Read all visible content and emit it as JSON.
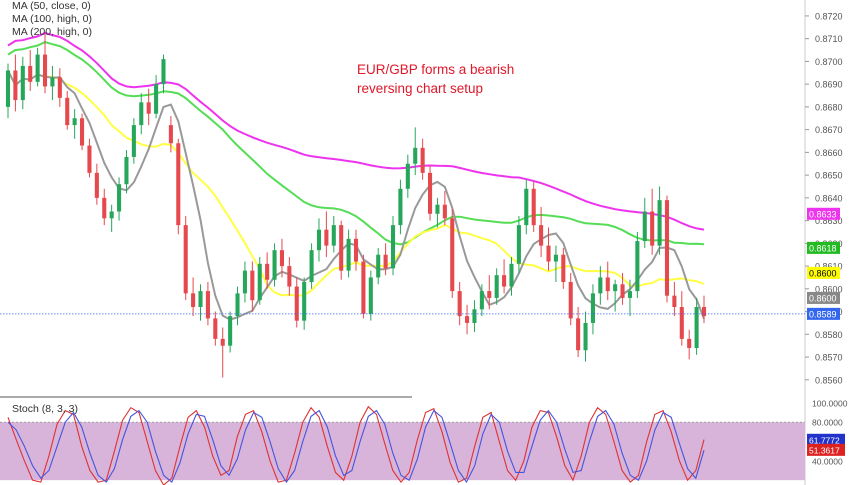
{
  "chart_data": [
    {
      "type": "candlestick",
      "indicators": [
        {
          "name": "MA (50, close, 0)",
          "color": "#ffff44"
        },
        {
          "name": "MA (100, high, 0)",
          "color": "#55dd55"
        },
        {
          "name": "MA (200, high, 0)",
          "color": "#ee33ee"
        }
      ],
      "annotation_lines": [
        "EUR/GBP forms a bearish",
        "reversing chart setup"
      ],
      "y_ticks": [
        "0.8720",
        "0.8710",
        "0.8700",
        "0.8690",
        "0.8680",
        "0.8670",
        "0.8660",
        "0.8650",
        "0.8640",
        "0.8630",
        "0.8620",
        "0.8610",
        "0.8600",
        "0.8590",
        "0.8580",
        "0.8570",
        "0.8560"
      ],
      "ylim": [
        0.8552,
        0.8727
      ],
      "grid": false,
      "price_line": 0.8589,
      "colors": {
        "up": "#26a65b",
        "down": "#e5484d",
        "ma20": "#999999"
      },
      "markers": [
        {
          "label": "0.8633",
          "value": 0.8633,
          "color": "#ee33ee"
        },
        {
          "label": "0.8618",
          "value": 0.8618,
          "color": "#22bb22"
        },
        {
          "label": "0.8600",
          "value": 0.8607,
          "color": "#ffff00",
          "text_color": "#000000"
        },
        {
          "label": "0.8600",
          "value": 0.8596,
          "color": "#888888"
        },
        {
          "label": "0.8589",
          "value": 0.8589,
          "color": "#3366ee"
        }
      ],
      "candles": [
        [
          0.868,
          0.8699,
          0.8675,
          0.8696
        ],
        [
          0.8696,
          0.8703,
          0.8678,
          0.8683
        ],
        [
          0.8683,
          0.8702,
          0.8679,
          0.8698
        ],
        [
          0.8698,
          0.8705,
          0.8687,
          0.8691
        ],
        [
          0.8691,
          0.8706,
          0.8689,
          0.8703
        ],
        [
          0.8703,
          0.8712,
          0.8686,
          0.8689
        ],
        [
          0.8689,
          0.8698,
          0.8683,
          0.8693
        ],
        [
          0.8693,
          0.8697,
          0.868,
          0.8684
        ],
        [
          0.8684,
          0.8687,
          0.867,
          0.8672
        ],
        [
          0.8672,
          0.8679,
          0.8666,
          0.8675
        ],
        [
          0.8675,
          0.8677,
          0.8661,
          0.8663
        ],
        [
          0.8663,
          0.8666,
          0.8649,
          0.8651
        ],
        [
          0.8651,
          0.8655,
          0.8637,
          0.864
        ],
        [
          0.864,
          0.8644,
          0.8628,
          0.8631
        ],
        [
          0.8631,
          0.8637,
          0.8625,
          0.8634
        ],
        [
          0.8634,
          0.8649,
          0.863,
          0.8646
        ],
        [
          0.8646,
          0.8661,
          0.8642,
          0.8658
        ],
        [
          0.8658,
          0.8675,
          0.8655,
          0.8672
        ],
        [
          0.8672,
          0.8686,
          0.8668,
          0.8682
        ],
        [
          0.8682,
          0.8688,
          0.8672,
          0.8677
        ],
        [
          0.8677,
          0.8694,
          0.8675,
          0.869
        ],
        [
          0.869,
          0.8703,
          0.8686,
          0.8701
        ],
        [
          0.8672,
          0.8676,
          0.866,
          0.8664
        ],
        [
          0.8664,
          0.8666,
          0.8624,
          0.8628
        ],
        [
          0.8628,
          0.8632,
          0.8595,
          0.8598
        ],
        [
          0.8598,
          0.8605,
          0.8588,
          0.8592
        ],
        [
          0.8592,
          0.8602,
          0.8586,
          0.8599
        ],
        [
          0.8599,
          0.8603,
          0.8584,
          0.8587
        ],
        [
          0.8587,
          0.859,
          0.8575,
          0.8578
        ],
        [
          0.8578,
          0.8583,
          0.8561,
          0.8575
        ],
        [
          0.8575,
          0.859,
          0.8572,
          0.8588
        ],
        [
          0.8588,
          0.8601,
          0.8584,
          0.8598
        ],
        [
          0.8598,
          0.8612,
          0.8594,
          0.8608
        ],
        [
          0.8608,
          0.8612,
          0.859,
          0.8595
        ],
        [
          0.8595,
          0.8614,
          0.8593,
          0.8611
        ],
        [
          0.8611,
          0.8616,
          0.86,
          0.8604
        ],
        [
          0.8604,
          0.862,
          0.8601,
          0.8617
        ],
        [
          0.8617,
          0.8622,
          0.8605,
          0.861
        ],
        [
          0.861,
          0.8614,
          0.8597,
          0.8601
        ],
        [
          0.8601,
          0.8605,
          0.8583,
          0.8586
        ],
        [
          0.8586,
          0.8605,
          0.8582,
          0.8603
        ],
        [
          0.8603,
          0.862,
          0.86,
          0.8617
        ],
        [
          0.8617,
          0.8631,
          0.8612,
          0.8626
        ],
        [
          0.8626,
          0.8634,
          0.8614,
          0.8619
        ],
        [
          0.8619,
          0.8632,
          0.8616,
          0.8628
        ],
        [
          0.8628,
          0.863,
          0.8604,
          0.8608
        ],
        [
          0.8608,
          0.8626,
          0.8605,
          0.8622
        ],
        [
          0.8622,
          0.8626,
          0.8608,
          0.8612
        ],
        [
          0.8612,
          0.8615,
          0.8587,
          0.8589
        ],
        [
          0.8589,
          0.8608,
          0.8586,
          0.8605
        ],
        [
          0.8605,
          0.8618,
          0.8602,
          0.8615
        ],
        [
          0.8615,
          0.862,
          0.8606,
          0.8609
        ],
        [
          0.8609,
          0.8632,
          0.8606,
          0.8628
        ],
        [
          0.8628,
          0.8648,
          0.8624,
          0.8644
        ],
        [
          0.8644,
          0.8659,
          0.864,
          0.8655
        ],
        [
          0.8655,
          0.8671,
          0.865,
          0.8662
        ],
        [
          0.8662,
          0.8666,
          0.8648,
          0.8651
        ],
        [
          0.8651,
          0.8654,
          0.863,
          0.8633
        ],
        [
          0.8633,
          0.864,
          0.8627,
          0.8637
        ],
        [
          0.8637,
          0.8643,
          0.8628,
          0.8631
        ],
        [
          0.8631,
          0.8635,
          0.8596,
          0.8599
        ],
        [
          0.8599,
          0.8603,
          0.8584,
          0.8588
        ],
        [
          0.8588,
          0.8593,
          0.858,
          0.8585
        ],
        [
          0.8585,
          0.8595,
          0.8581,
          0.8591
        ],
        [
          0.8591,
          0.8602,
          0.8588,
          0.8599
        ],
        [
          0.8599,
          0.8606,
          0.8591,
          0.8596
        ],
        [
          0.8596,
          0.8609,
          0.8593,
          0.8606
        ],
        [
          0.8606,
          0.8613,
          0.8598,
          0.8601
        ],
        [
          0.8601,
          0.8614,
          0.8597,
          0.8611
        ],
        [
          0.8611,
          0.8632,
          0.8607,
          0.8628
        ],
        [
          0.8628,
          0.8648,
          0.8624,
          0.8644
        ],
        [
          0.8644,
          0.8647,
          0.8625,
          0.8628
        ],
        [
          0.8628,
          0.8636,
          0.8614,
          0.8619
        ],
        [
          0.8619,
          0.8627,
          0.8608,
          0.8612
        ],
        [
          0.8612,
          0.8619,
          0.8603,
          0.8615
        ],
        [
          0.8615,
          0.8618,
          0.86,
          0.8603
        ],
        [
          0.8603,
          0.8607,
          0.8584,
          0.8587
        ],
        [
          0.8587,
          0.8592,
          0.857,
          0.8573
        ],
        [
          0.8573,
          0.859,
          0.8568,
          0.8585
        ],
        [
          0.8585,
          0.8602,
          0.858,
          0.8598
        ],
        [
          0.8598,
          0.861,
          0.8593,
          0.8605
        ],
        [
          0.8605,
          0.8612,
          0.8595,
          0.8599
        ],
        [
          0.8599,
          0.8604,
          0.859,
          0.8602
        ],
        [
          0.8602,
          0.8607,
          0.8593,
          0.8596
        ],
        [
          0.8596,
          0.8604,
          0.8588,
          0.8599
        ],
        [
          0.8599,
          0.8625,
          0.8596,
          0.8621
        ],
        [
          0.8621,
          0.864,
          0.8618,
          0.8634
        ],
        [
          0.8634,
          0.8644,
          0.8615,
          0.8619
        ],
        [
          0.8619,
          0.8645,
          0.8615,
          0.8639
        ],
        [
          0.8639,
          0.8641,
          0.8594,
          0.8597
        ],
        [
          0.8597,
          0.8603,
          0.8588,
          0.8592
        ],
        [
          0.8592,
          0.8599,
          0.8575,
          0.8578
        ],
        [
          0.8578,
          0.8582,
          0.8569,
          0.8574
        ],
        [
          0.8574,
          0.8596,
          0.8571,
          0.8592
        ],
        [
          0.8592,
          0.8597,
          0.8585,
          0.8588
        ]
      ]
    },
    {
      "type": "line",
      "title": "Stoch (8, 3, 3)",
      "y_ticks": [
        "100.0000",
        "80.0000",
        "40.0000"
      ],
      "ylim": [
        15,
        105
      ],
      "levels": [
        80,
        20
      ],
      "colors": {
        "k": "#4455dd",
        "d": "#dd3333",
        "band": "#d8b3da"
      },
      "markers": [
        {
          "label": "61.7772",
          "value": 61.78,
          "color": "#2233cc"
        },
        {
          "label": "51.3617",
          "value": 51.36,
          "color": "#dd2222"
        }
      ],
      "series": [
        {
          "values": [
            85,
            62,
            40,
            20,
            18,
            45,
            78,
            92,
            88,
            55,
            30,
            18,
            20,
            50,
            82,
            95,
            90,
            60,
            30,
            15,
            22,
            55,
            85,
            92,
            75,
            45,
            25,
            30,
            65,
            88,
            92,
            70,
            40,
            18,
            20,
            48,
            80,
            95,
            85,
            55,
            28,
            20,
            45,
            80,
            96,
            88,
            58,
            30,
            18,
            28,
            62,
            90,
            94,
            70,
            38,
            18,
            22,
            55,
            85,
            90,
            60,
            30,
            20,
            40,
            75,
            92,
            90,
            65,
            35,
            20,
            45,
            80,
            95,
            88,
            60,
            30,
            18,
            25,
            60,
            88,
            92,
            70,
            40,
            20,
            30,
            62
          ]
        },
        {
          "values": [
            80,
            72,
            55,
            35,
            22,
            30,
            55,
            80,
            90,
            75,
            48,
            25,
            18,
            32,
            62,
            86,
            92,
            80,
            50,
            25,
            18,
            38,
            68,
            88,
            86,
            62,
            35,
            25,
            42,
            72,
            90,
            85,
            60,
            32,
            18,
            30,
            60,
            86,
            92,
            75,
            45,
            25,
            30,
            60,
            86,
            92,
            78,
            48,
            25,
            20,
            42,
            75,
            92,
            85,
            58,
            30,
            18,
            35,
            68,
            88,
            80,
            50,
            28,
            28,
            55,
            82,
            92,
            80,
            52,
            28,
            30,
            60,
            86,
            92,
            78,
            48,
            25,
            20,
            40,
            72,
            90,
            85,
            58,
            32,
            22,
            51
          ]
        }
      ]
    }
  ]
}
